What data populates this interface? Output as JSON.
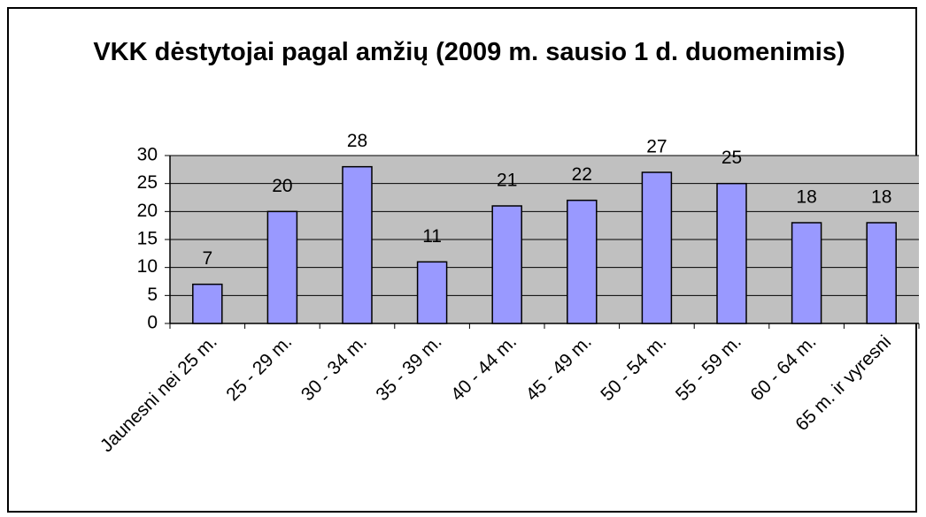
{
  "chart_data": {
    "type": "bar",
    "title": "VKK dėstytojai pagal amžių (2009 m. sausio 1 d. duomenimis)",
    "categories": [
      "Jaunesni nei 25 m.",
      "25 - 29 m.",
      "30 - 34 m.",
      "35 - 39 m.",
      "40 - 44 m.",
      "45 - 49 m.",
      "50 - 54 m.",
      "55 - 59 m.",
      "60 - 64 m.",
      "65 m. ir vyresni"
    ],
    "values": [
      7,
      20,
      28,
      11,
      21,
      22,
      27,
      25,
      18,
      18
    ],
    "color": "#9999ff",
    "ylim": [
      0,
      30
    ],
    "yticks": [
      0,
      5,
      10,
      15,
      20,
      25,
      30
    ],
    "grid": true
  }
}
